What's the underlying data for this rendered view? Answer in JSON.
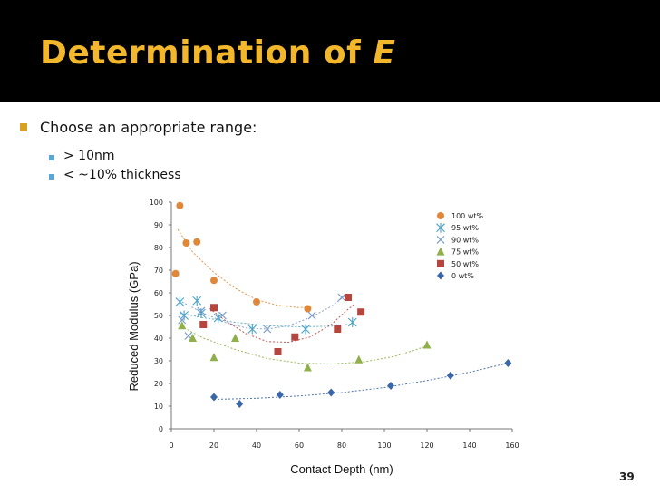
{
  "slide": {
    "title_main": "Determination of ",
    "title_italic": "E",
    "bullet1": "Choose an appropriate range:",
    "sub1": "> 10nm",
    "sub2": "< ~10% thickness",
    "page_number": "39"
  },
  "colors": {
    "title": "#f2b72a",
    "bullet": "#d9a21e",
    "subbullet": "#5aa6d6"
  },
  "chart_data": {
    "type": "scatter",
    "xlabel": "Contact Depth (nm)",
    "ylabel": "Reduced Modulus (GPa)",
    "xlim": [
      0,
      160
    ],
    "ylim": [
      0,
      100
    ],
    "xticks": [
      0,
      20,
      40,
      60,
      80,
      100,
      120,
      140,
      160
    ],
    "yticks": [
      0,
      10,
      20,
      30,
      40,
      50,
      60,
      70,
      80,
      90,
      100
    ],
    "legend_position": "right",
    "grid": false,
    "series": [
      {
        "name": "100 wt%",
        "marker": "circle",
        "color": "#e0883a",
        "points": [
          [
            2,
            68.5
          ],
          [
            4,
            98.5
          ],
          [
            7,
            82
          ],
          [
            12,
            82.5
          ],
          [
            20,
            65.5
          ],
          [
            40,
            56
          ],
          [
            64,
            53
          ]
        ],
        "trend": [
          [
            3,
            88
          ],
          [
            10,
            78
          ],
          [
            20,
            69
          ],
          [
            30,
            62
          ],
          [
            40,
            57
          ],
          [
            50,
            54.5
          ],
          [
            60,
            53.5
          ],
          [
            66,
            54
          ]
        ]
      },
      {
        "name": "95 wt%",
        "marker": "asterisk",
        "color": "#4aa3c8",
        "points": [
          [
            4,
            56
          ],
          [
            6,
            50
          ],
          [
            12,
            56.5
          ],
          [
            14,
            51
          ],
          [
            22,
            49
          ],
          [
            38,
            44
          ],
          [
            63,
            44
          ],
          [
            85,
            47
          ]
        ],
        "trend": [
          [
            4,
            51
          ],
          [
            15,
            49
          ],
          [
            30,
            47
          ],
          [
            45,
            45.5
          ],
          [
            60,
            45
          ],
          [
            75,
            45.3
          ],
          [
            87,
            46.5
          ]
        ]
      },
      {
        "name": "90 wt%",
        "marker": "cross",
        "color": "#7a9cc8",
        "points": [
          [
            5,
            48
          ],
          [
            8,
            41
          ],
          [
            14,
            52
          ],
          [
            24,
            50
          ],
          [
            45,
            44
          ],
          [
            66,
            50
          ],
          [
            80,
            58
          ]
        ],
        "trend": [
          [
            5,
            56
          ],
          [
            15,
            51
          ],
          [
            25,
            47
          ],
          [
            35,
            44.5
          ],
          [
            45,
            44
          ],
          [
            55,
            45.5
          ],
          [
            65,
            49
          ],
          [
            75,
            54
          ],
          [
            82,
            59
          ]
        ]
      },
      {
        "name": "75 wt%",
        "marker": "triangle",
        "color": "#8fb04a",
        "points": [
          [
            5,
            45.5
          ],
          [
            10,
            40
          ],
          [
            20,
            31.5
          ],
          [
            30,
            40
          ],
          [
            64,
            27
          ],
          [
            88,
            30.5
          ],
          [
            120,
            37
          ]
        ],
        "trend": [
          [
            3,
            46
          ],
          [
            15,
            40
          ],
          [
            30,
            35
          ],
          [
            45,
            31
          ],
          [
            60,
            29
          ],
          [
            75,
            28.6
          ],
          [
            90,
            29.5
          ],
          [
            105,
            32
          ],
          [
            120,
            36.5
          ]
        ]
      },
      {
        "name": "50 wt%",
        "marker": "square",
        "color": "#b5453f",
        "points": [
          [
            15,
            46
          ],
          [
            20,
            53.5
          ],
          [
            50,
            34
          ],
          [
            58,
            40.5
          ],
          [
            78,
            44
          ],
          [
            83,
            58
          ],
          [
            89,
            51.5
          ]
        ],
        "trend": [
          [
            18,
            53
          ],
          [
            25,
            48
          ],
          [
            35,
            42
          ],
          [
            45,
            38.5
          ],
          [
            55,
            38.2
          ],
          [
            65,
            40.5
          ],
          [
            75,
            46
          ],
          [
            82,
            52
          ],
          [
            86,
            55
          ]
        ]
      },
      {
        "name": "0 wt%",
        "marker": "diamond",
        "color": "#3a67a8",
        "points": [
          [
            20,
            14
          ],
          [
            32,
            11
          ],
          [
            51,
            15
          ],
          [
            75,
            16
          ],
          [
            103,
            19
          ],
          [
            131,
            23.5
          ],
          [
            158,
            29
          ]
        ],
        "trend": [
          [
            20,
            13
          ],
          [
            40,
            13.5
          ],
          [
            60,
            14.5
          ],
          [
            80,
            16
          ],
          [
            100,
            18.2
          ],
          [
            120,
            21.3
          ],
          [
            140,
            25
          ],
          [
            158,
            29
          ]
        ]
      }
    ]
  }
}
